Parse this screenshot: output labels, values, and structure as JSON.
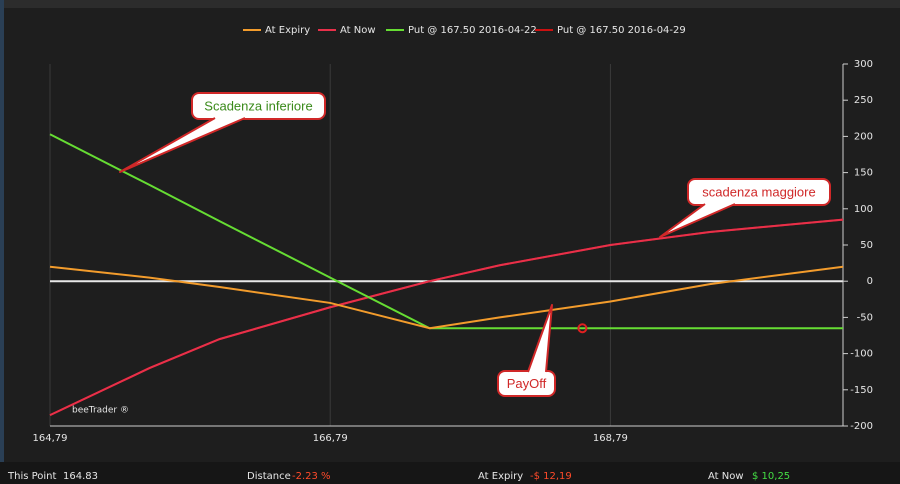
{
  "chart_data": {
    "type": "line",
    "series": [
      {
        "name": "At Expiry",
        "color": "#f39c2c",
        "values": [
          20,
          5,
          -8,
          -30,
          -65,
          -50,
          -28,
          -4,
          20
        ]
      },
      {
        "name": "At Now",
        "color": "#e8304a",
        "values": [
          -185,
          -120,
          -80,
          -36,
          0,
          22,
          50,
          68,
          85
        ]
      },
      {
        "name": "Put @ 167.50 2016-04-22",
        "color": "#66dd33",
        "values": [
          203,
          133,
          83,
          5,
          -65,
          -65,
          -65,
          -65,
          -65
        ]
      },
      {
        "name": "Put @ 167.50 2016-04-29",
        "color": "#cc1111",
        "values": [
          -185,
          -120,
          -80,
          -36,
          0,
          22,
          50,
          68,
          85
        ]
      }
    ],
    "x": [
      164.79,
      165.5,
      166.0,
      166.79,
      167.5,
      168.0,
      168.79,
      169.5,
      170.45
    ],
    "xlim": [
      164.79,
      170.45
    ],
    "xticks": [
      {
        "value": 164.79,
        "label": "164,79"
      },
      {
        "value": 166.79,
        "label": "166,79"
      },
      {
        "value": 168.79,
        "label": "168,79"
      }
    ],
    "ylim": [
      -200,
      300
    ],
    "yticks": [
      300,
      250,
      200,
      150,
      100,
      50,
      0,
      -50,
      -100,
      -150,
      -200
    ],
    "grid": true,
    "marker": {
      "x": 168.59,
      "y": -65,
      "color": "#e02020"
    },
    "annotations": [
      "Scadenza inferiore",
      "scadenza maggiore",
      "PayOff"
    ],
    "watermark": "beeTrader ®"
  },
  "status": {
    "this_point_label": "This Point",
    "this_point_value": "164.83",
    "distance_label": "Distance",
    "distance_value": "-2.23 %",
    "at_expiry_label": "At Expiry",
    "at_expiry_value": "-$ 12,19",
    "at_now_label": "At Now",
    "at_now_value": "$ 10,25"
  }
}
